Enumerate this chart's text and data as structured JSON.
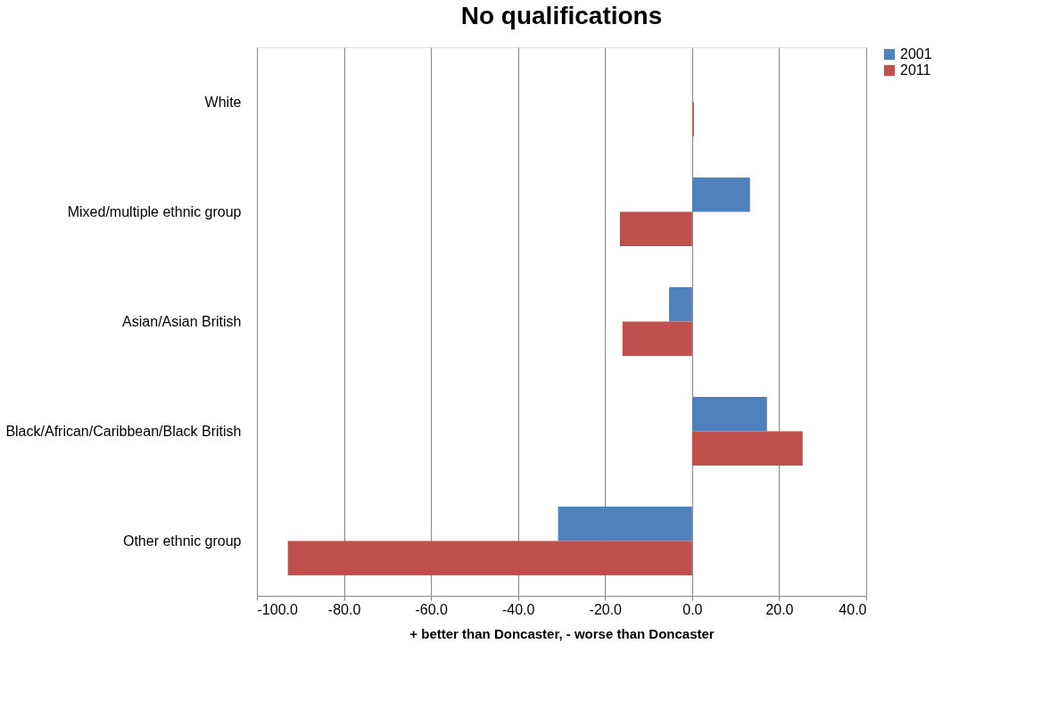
{
  "chart_data": {
    "type": "bar",
    "orientation": "horizontal",
    "title": "No qualifications",
    "xlabel": "+ better than Doncaster, - worse than Doncaster",
    "categories": [
      "White",
      "Mixed/multiple ethnic group",
      "Asian/Asian British",
      "Black/African/Caribbean/Black British",
      "Other ethnic group"
    ],
    "series": [
      {
        "name": "2001",
        "color": "#4f81bd",
        "values": [
          null,
          13.3,
          -5.3,
          17.2,
          -30.8
        ]
      },
      {
        "name": "2011",
        "color": "#c0504d",
        "values": [
          0.4,
          -16.6,
          -16.0,
          25.4,
          -92.9
        ]
      }
    ],
    "xlim": [
      -100,
      40
    ],
    "xticks": [
      {
        "value": -100,
        "label": "-100.0"
      },
      {
        "value": -80,
        "label": "-80.0"
      },
      {
        "value": -60,
        "label": "-60.0"
      },
      {
        "value": -40,
        "label": "-40.0"
      },
      {
        "value": -20,
        "label": "-20.0"
      },
      {
        "value": 0,
        "label": "0.0"
      },
      {
        "value": 20,
        "label": "20.0"
      },
      {
        "value": 40,
        "label": "40.0"
      }
    ],
    "grid": "x",
    "legend": "right"
  }
}
